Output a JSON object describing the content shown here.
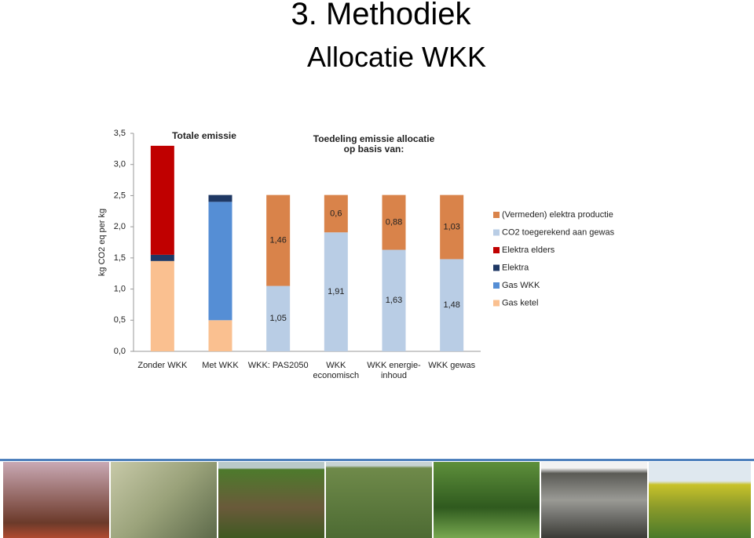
{
  "header": {
    "title": "3. Methodiek",
    "subtitle": "Allocatie WKK"
  },
  "chart_data": {
    "type": "stacked-bar",
    "annotations": [
      "Totale emissie",
      "Toedeling emissie allocatie\nop basis van:"
    ],
    "y_label": "kg CO2 eq per kg",
    "categories": [
      "Zonder WKK",
      "Met WKK",
      "WKK: PAS2050",
      "WKK\neconomisch",
      "WKK energie-\ninhoud",
      "WKK gewas"
    ],
    "series": [
      {
        "name": "(Vermeden) elektra productie",
        "color": "#d9834a",
        "values": [
          null,
          null,
          1.46,
          0.6,
          0.88,
          1.03
        ],
        "value_labels": [
          null,
          null,
          "1,46",
          "0,6",
          "0,88",
          "1,03"
        ]
      },
      {
        "name": "CO2 toegerekend aan gewas",
        "color": "#b9cde5",
        "values": [
          null,
          null,
          1.05,
          1.91,
          1.63,
          1.48
        ],
        "value_labels": [
          null,
          null,
          "1,05",
          "1,91",
          "1,63",
          "1,48"
        ]
      },
      {
        "name": "Elektra elders",
        "color": "#c00000",
        "values": [
          1.75,
          null,
          null,
          null,
          null,
          null
        ]
      },
      {
        "name": "Elektra",
        "color": "#1f3864",
        "values": [
          0.1,
          0.11,
          null,
          null,
          null,
          null
        ]
      },
      {
        "name": "Gas WKK",
        "color": "#558ed5",
        "values": [
          null,
          1.9,
          null,
          null,
          null,
          null
        ]
      },
      {
        "name": "Gas ketel",
        "color": "#fac090",
        "values": [
          1.45,
          0.5,
          null,
          null,
          null,
          null
        ]
      }
    ],
    "ylim": [
      0,
      3.5
    ],
    "yticks": [
      {
        "value": 0,
        "label": "0,0"
      },
      {
        "value": 0.5,
        "label": "0,5"
      },
      {
        "value": 1,
        "label": "1,0"
      },
      {
        "value": 1.5,
        "label": "1,5"
      },
      {
        "value": 2,
        "label": "2,0"
      },
      {
        "value": 2.5,
        "label": "2,5"
      },
      {
        "value": 3,
        "label": "3,0"
      },
      {
        "value": 3.5,
        "label": "3,5"
      }
    ]
  }
}
